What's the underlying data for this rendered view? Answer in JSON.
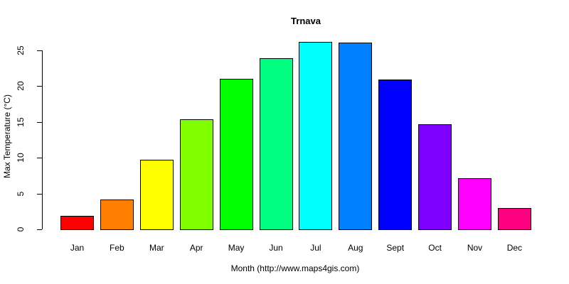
{
  "chart_data": {
    "type": "bar",
    "title": "Trnava",
    "xlabel": "Month (http://www.maps4gis.com)",
    "ylabel": "Max Temperature (°C)",
    "categories": [
      "Jan",
      "Feb",
      "Mar",
      "Apr",
      "May",
      "Jun",
      "Jul",
      "Aug",
      "Sept",
      "Oct",
      "Nov",
      "Dec"
    ],
    "values": [
      1.9,
      4.2,
      9.7,
      15.4,
      21.0,
      23.9,
      26.2,
      26.1,
      20.9,
      14.7,
      7.1,
      3.0
    ],
    "colors": [
      "#FF0000",
      "#FF8000",
      "#FFFF00",
      "#80FF00",
      "#00FF00",
      "#00FF80",
      "#00FFFF",
      "#0080FF",
      "#0000FF",
      "#8000FF",
      "#FF00FF",
      "#FF0080"
    ],
    "yticks": [
      "0",
      "5",
      "10",
      "15",
      "20",
      "25"
    ],
    "ylim": [
      0,
      26.2
    ],
    "grid": false,
    "legend": "none"
  }
}
